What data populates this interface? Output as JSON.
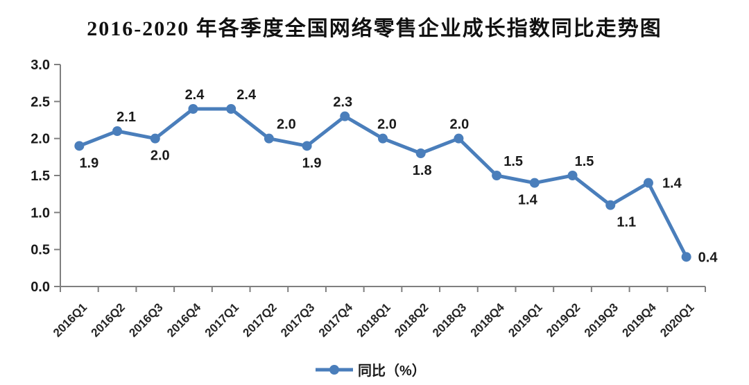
{
  "title": "2016-2020 年各季度全国网络零售企业成长指数同比走势图",
  "chart_data": {
    "type": "line",
    "title": "2016-2020 年各季度全国网络零售企业成长指数同比走势图",
    "categories": [
      "2016Q1",
      "2016Q2",
      "2016Q3",
      "2016Q4",
      "2017Q1",
      "2017Q2",
      "2017Q3",
      "2017Q4",
      "2018Q1",
      "2018Q2",
      "2018Q3",
      "2018Q4",
      "2019Q1",
      "2019Q2",
      "2019Q3",
      "2019Q4",
      "2020Q1"
    ],
    "series": [
      {
        "name": "同比（%）",
        "values": [
          1.9,
          2.1,
          2.0,
          2.4,
          2.4,
          2.0,
          1.9,
          2.3,
          2.0,
          1.8,
          2.0,
          1.5,
          1.4,
          1.5,
          1.1,
          1.4,
          0.4
        ],
        "color": "#4a7ebb"
      }
    ],
    "xlabel": "",
    "ylabel": "",
    "ylim": [
      0.0,
      3.0
    ],
    "ytick_labels": [
      "0.0",
      "0.5",
      "1.0",
      "1.5",
      "2.0",
      "2.5",
      "3.0"
    ],
    "grid": false,
    "legend_position": "bottom",
    "legend_label": "同比（%）",
    "colors": {
      "line": "#4a7ebb",
      "marker": "#4a7ebb",
      "axis": "#7f7f7f",
      "tick_label": "#262626",
      "data_label": "#1a1a1a",
      "background": "#ffffff"
    },
    "data_labels": [
      {
        "value": "1.9",
        "pos": "below",
        "dx": 14
      },
      {
        "value": "2.1",
        "pos": "above",
        "dx": 13
      },
      {
        "value": "2.0",
        "pos": "below",
        "dx": 7
      },
      {
        "value": "2.4",
        "pos": "above",
        "dx": 2
      },
      {
        "value": "2.4",
        "pos": "above",
        "dx": 22
      },
      {
        "value": "2.0",
        "pos": "above",
        "dx": 25
      },
      {
        "value": "1.9",
        "pos": "below",
        "dx": 7
      },
      {
        "value": "2.3",
        "pos": "above",
        "dx": -3
      },
      {
        "value": "2.0",
        "pos": "above",
        "dx": 6
      },
      {
        "value": "1.8",
        "pos": "below",
        "dx": 2
      },
      {
        "value": "2.0",
        "pos": "above",
        "dx": 1
      },
      {
        "value": "1.5",
        "pos": "above",
        "dx": 24
      },
      {
        "value": "1.4",
        "pos": "below",
        "dx": -10
      },
      {
        "value": "1.5",
        "pos": "above",
        "dx": 17
      },
      {
        "value": "1.1",
        "pos": "below",
        "dx": 23
      },
      {
        "value": "1.4",
        "pos": "right",
        "dx": 20
      },
      {
        "value": "0.4",
        "pos": "right",
        "dx": 17
      }
    ]
  }
}
